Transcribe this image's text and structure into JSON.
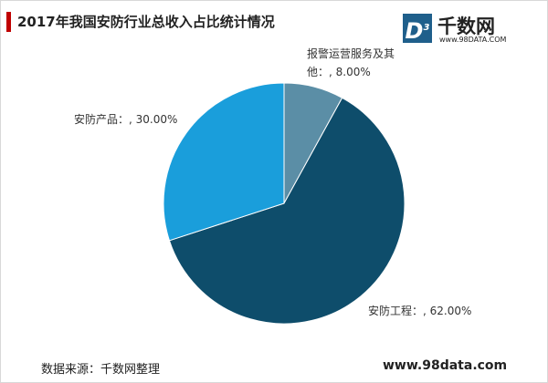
{
  "chart_data": {
    "type": "pie",
    "title": "2017年我国安防行业总收入占比统计情况",
    "categories": [
      "报警运营服务及其他：",
      "安防工程：",
      "安防产品："
    ],
    "values": [
      8,
      62,
      30
    ],
    "value_labels": [
      ", 8.00%",
      ", 62.00%",
      ", 30.00%"
    ],
    "colors": [
      "#5b8ea6",
      "#0e4d6b",
      "#1a9edb"
    ]
  },
  "logo": {
    "mark": "D",
    "mark_sup": "3",
    "name": "千数网",
    "url": "www.98DATA.COM"
  },
  "source": "数据来源：千数网整理",
  "footer_url": "www.98data.com"
}
